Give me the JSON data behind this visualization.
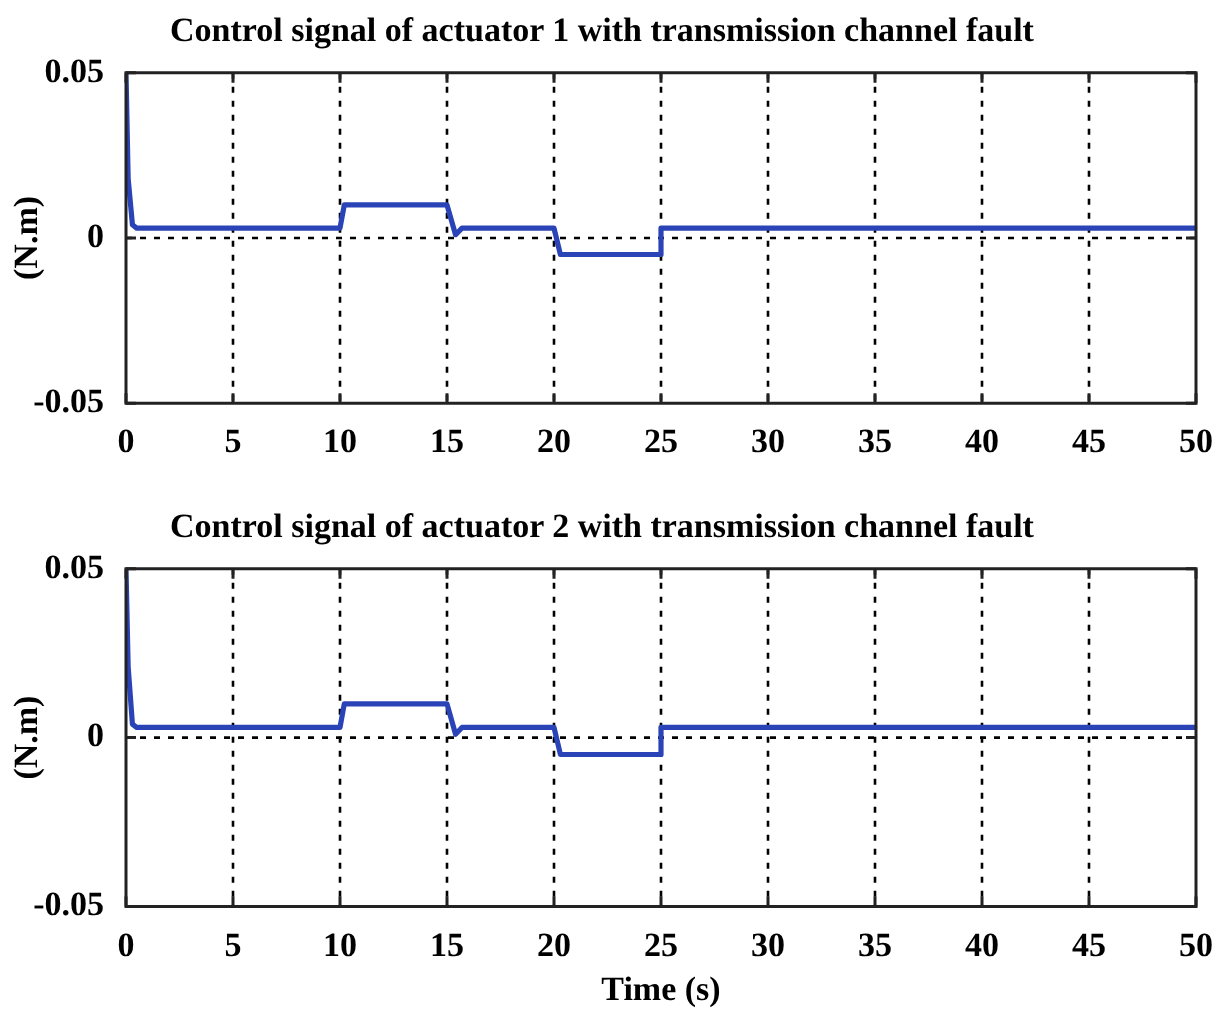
{
  "chart_data": [
    {
      "type": "line",
      "title": "Control signal of actuator 1 with transmission channel fault",
      "ylabel": "(N.m)",
      "xlim": [
        0,
        50
      ],
      "xticks": [
        0,
        5,
        10,
        15,
        20,
        25,
        30,
        35,
        40,
        45,
        50
      ],
      "ylim": [
        -0.05,
        0.05
      ],
      "yticks": [
        -0.05,
        0,
        0.05
      ],
      "grid": true,
      "legend": false,
      "line_style": "solid",
      "marker": "none",
      "series": [
        {
          "color": "#2a44b8",
          "x": [
            0,
            0.05,
            0.1,
            0.15,
            0.3,
            0.5,
            10,
            10.2,
            15,
            15.4,
            15.7,
            20,
            20.3,
            25,
            25,
            50
          ],
          "values": [
            0.05,
            0.05,
            0.018,
            0.018,
            0.004,
            0.003,
            0.003,
            0.01,
            0.01,
            0.001,
            0.003,
            0.003,
            -0.005,
            -0.005,
            0.003,
            0.003
          ]
        }
      ]
    },
    {
      "type": "line",
      "title": "Control signal of actuator 2 with transmission channel fault",
      "xlabel": "Time (s)",
      "ylabel": "(N.m)",
      "xlim": [
        0,
        50
      ],
      "xticks": [
        0,
        5,
        10,
        15,
        20,
        25,
        30,
        35,
        40,
        45,
        50
      ],
      "ylim": [
        -0.05,
        0.05
      ],
      "yticks": [
        -0.05,
        0,
        0.05
      ],
      "grid": true,
      "legend": false,
      "line_style": "solid",
      "marker": "none",
      "series": [
        {
          "color": "#2a44b8",
          "x": [
            0,
            0.05,
            0.1,
            0.15,
            0.3,
            0.5,
            10,
            10.2,
            15,
            15.4,
            15.7,
            20,
            20.3,
            25,
            25,
            50
          ],
          "values": [
            0.05,
            0.05,
            0.021,
            0.021,
            0.004,
            0.003,
            0.003,
            0.01,
            0.01,
            0.001,
            0.003,
            0.003,
            -0.005,
            -0.005,
            0.003,
            0.003
          ]
        }
      ]
    }
  ]
}
